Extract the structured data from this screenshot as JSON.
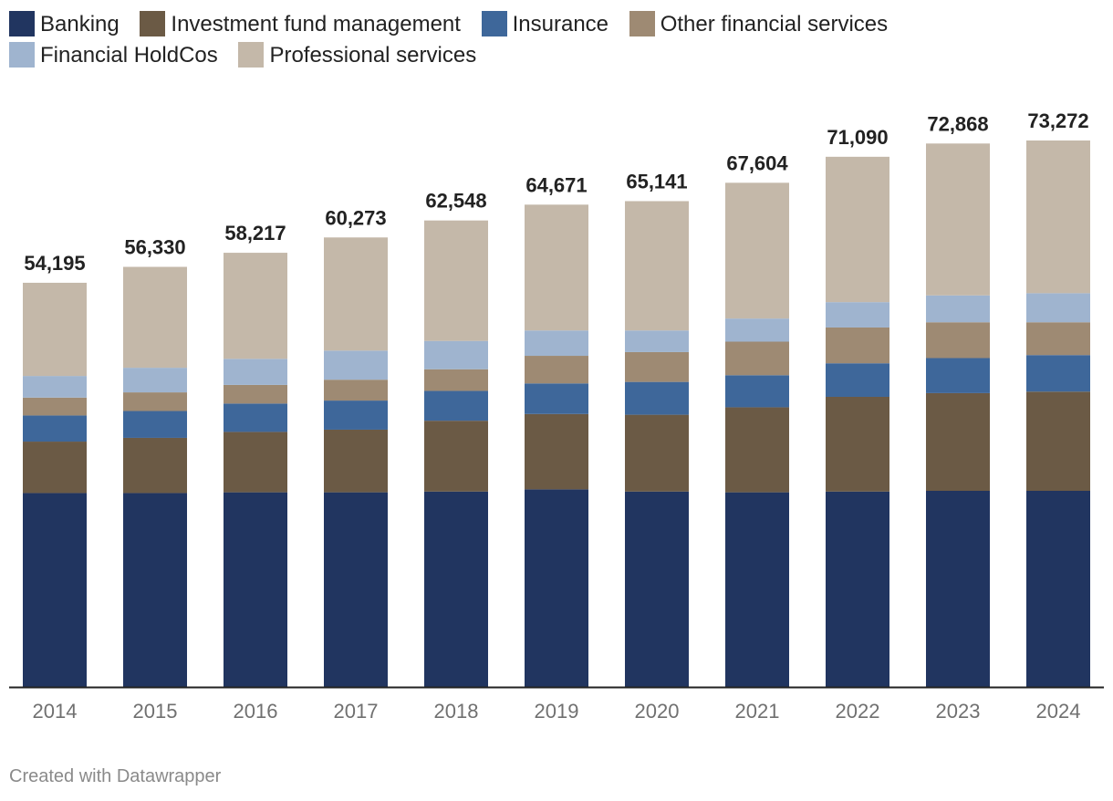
{
  "legend": [
    {
      "name": "Banking",
      "color": "#213560"
    },
    {
      "name": "Investment fund management",
      "color": "#6b5a45"
    },
    {
      "name": "Insurance",
      "color": "#3e679a"
    },
    {
      "name": "Other financial services",
      "color": "#9e8a73"
    },
    {
      "name": "Financial HoldCos",
      "color": "#9fb4cf"
    },
    {
      "name": "Professional services",
      "color": "#c4b8a9"
    }
  ],
  "footer": {
    "credit": "Created with Datawrapper"
  },
  "chart_data": {
    "type": "bar",
    "stacked": true,
    "title": "",
    "xlabel": "",
    "ylabel": "",
    "ylim": [
      0,
      73272
    ],
    "grid": false,
    "legend_position": "top",
    "categories": [
      "2014",
      "2015",
      "2016",
      "2017",
      "2018",
      "2019",
      "2020",
      "2021",
      "2022",
      "2023",
      "2024"
    ],
    "totals": [
      54195,
      56330,
      58217,
      60273,
      62548,
      64671,
      65141,
      67604,
      71090,
      72868,
      73272
    ],
    "total_labels": [
      "54,195",
      "56,330",
      "58,217",
      "60,273",
      "62,548",
      "64,671",
      "65,141",
      "67,604",
      "71,090",
      "72,868",
      "73,272"
    ],
    "series": [
      {
        "name": "Banking",
        "color": "#213560",
        "values": [
          26000,
          26000,
          26100,
          26100,
          26200,
          26500,
          26200,
          26100,
          26200,
          26300,
          26300
        ]
      },
      {
        "name": "Investment fund management",
        "color": "#6b5a45",
        "values": [
          6900,
          7400,
          8100,
          8400,
          9500,
          10100,
          10300,
          11400,
          12700,
          13100,
          13300
        ]
      },
      {
        "name": "Insurance",
        "color": "#3e679a",
        "values": [
          3500,
          3600,
          3800,
          3900,
          4000,
          4100,
          4400,
          4300,
          4500,
          4700,
          4900
        ]
      },
      {
        "name": "Other financial services",
        "color": "#9e8a73",
        "values": [
          2400,
          2500,
          2500,
          2800,
          2900,
          3700,
          4000,
          4500,
          4800,
          4800,
          4400
        ]
      },
      {
        "name": "Financial HoldCos",
        "color": "#9fb4cf",
        "values": [
          2900,
          3300,
          3500,
          3900,
          3800,
          3400,
          2900,
          3100,
          3400,
          3600,
          3900
        ]
      },
      {
        "name": "Professional services",
        "color": "#c4b8a9",
        "values": [
          12495,
          13530,
          14217,
          15173,
          16148,
          16871,
          17341,
          18204,
          19490,
          20368,
          20472
        ]
      }
    ]
  }
}
